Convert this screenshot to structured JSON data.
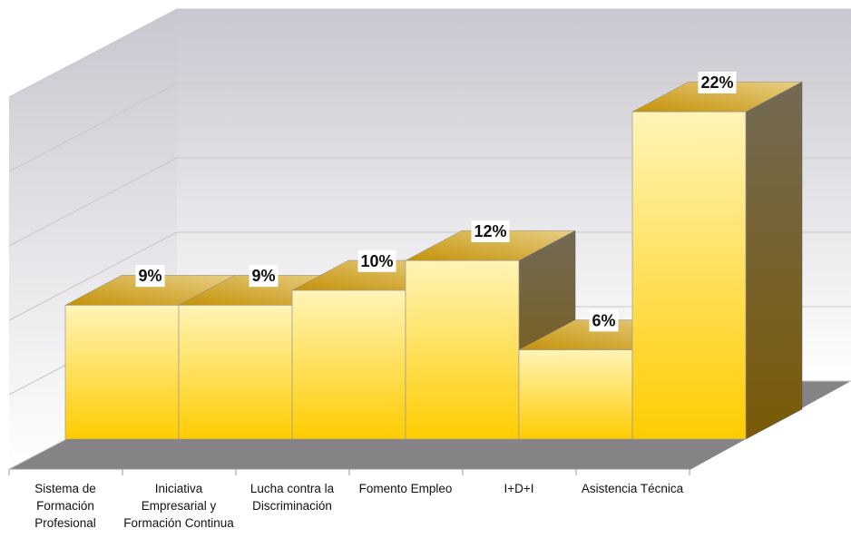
{
  "chart_data": {
    "type": "bar3d",
    "categories": [
      "Sistema de Formación Profesional",
      "Iniciativa Empresarial y Formación Continua",
      "Lucha contra la Discriminación",
      "Fomento Empleo",
      "I+D+I",
      "Asistencia Técnica"
    ],
    "values": [
      9,
      9,
      10,
      12,
      6,
      22
    ],
    "value_labels": [
      "9%",
      "9%",
      "10%",
      "12%",
      "6%",
      "22%"
    ],
    "color": "#ffcc00",
    "ylim": [
      0,
      25
    ],
    "yticks": [
      0,
      5,
      10,
      15,
      20,
      25
    ],
    "grid": true
  }
}
